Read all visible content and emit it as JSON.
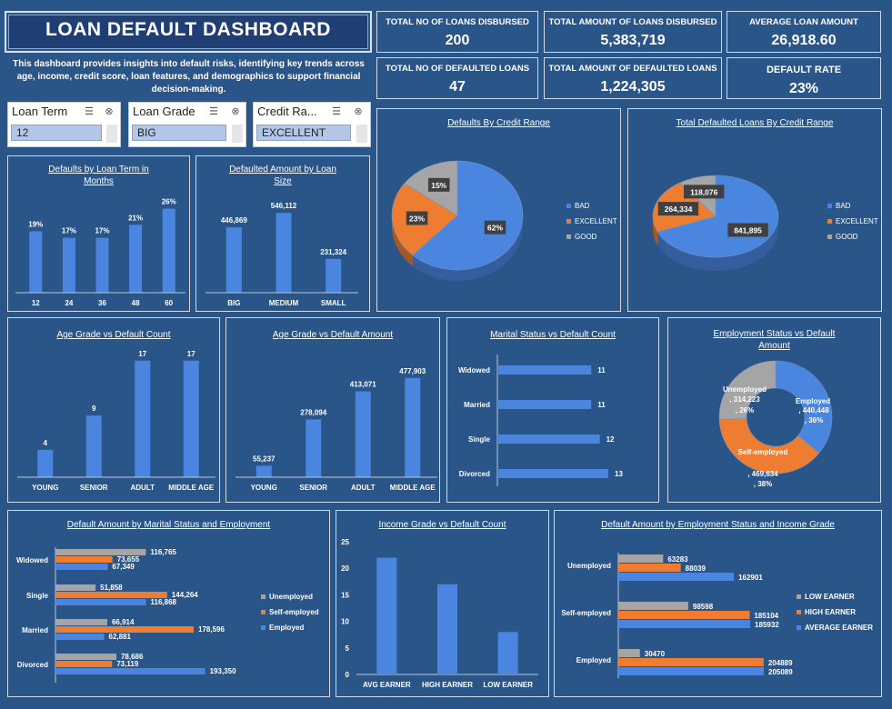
{
  "header": {
    "title": "LOAN DEFAULT DASHBOARD",
    "description": "This dashboard provides insights into default risks, identifying key trends across age, income, credit score, loan features, and demographics to support financial decision-making."
  },
  "kpis": [
    {
      "label": "TOTAL NO OF LOANS DISBURSED",
      "value": "200"
    },
    {
      "label": "TOTAL AMOUNT OF LOANS DISBURSED",
      "value": "5,383,719"
    },
    {
      "label": "AVERAGE LOAN AMOUNT",
      "value": "26,918.60"
    },
    {
      "label": "TOTAL NO OF DEFAULTED LOANS",
      "value": "47"
    },
    {
      "label": "TOTAL AMOUNT OF DEFAULTED LOANS",
      "value": "1,224,305"
    },
    {
      "label": "DEFAULT RATE",
      "value": "23%"
    }
  ],
  "slicers": [
    {
      "title": "Loan Term",
      "selected": "12"
    },
    {
      "title": "Loan Grade",
      "selected": "BIG"
    },
    {
      "title": "Credit Ra...",
      "selected": "EXCELLENT"
    }
  ],
  "colors": {
    "blue": "#4a86e0",
    "orange": "#ee7d31",
    "gray": "#a5a5a5",
    "bg": "#2a5589"
  },
  "chart_data": [
    {
      "id": "loan_term",
      "type": "bar",
      "title": "Defaults by Loan Term in Months",
      "categories": [
        "12",
        "24",
        "36",
        "48",
        "60"
      ],
      "values": [
        19,
        17,
        17,
        21,
        26
      ],
      "value_labels": [
        "19%",
        "17%",
        "17%",
        "21%",
        "26%"
      ]
    },
    {
      "id": "loan_size",
      "type": "bar",
      "title": "Defaulted Amount by Loan Size",
      "categories": [
        "BIG",
        "MEDIUM",
        "SMALL"
      ],
      "values": [
        446869,
        546112,
        231324
      ],
      "value_labels": [
        "446,869",
        "546,112",
        "231,324"
      ]
    },
    {
      "id": "credit_pie",
      "type": "pie",
      "title": "Defaults By Credit Range",
      "categories": [
        "BAD",
        "EXCELLENT",
        "GOOD"
      ],
      "values": [
        62,
        23,
        15
      ],
      "value_labels": [
        "62%",
        "23%",
        "15%"
      ]
    },
    {
      "id": "credit_amount_pie",
      "type": "pie",
      "title": "Total Defaulted Loans By Credit Range",
      "categories": [
        "BAD",
        "EXCELLENT",
        "GOOD"
      ],
      "values": [
        841895,
        264334,
        118076
      ],
      "value_labels": [
        "841,895",
        "264,334",
        "118,076"
      ]
    },
    {
      "id": "age_count",
      "type": "bar",
      "title": "Age Grade vs Default Count",
      "categories": [
        "YOUNG",
        "SENIOR",
        "ADULT",
        "MIDDLE AGE"
      ],
      "values": [
        4,
        9,
        17,
        17
      ],
      "value_labels": [
        "4",
        "9",
        "17",
        "17"
      ]
    },
    {
      "id": "age_amount",
      "type": "bar",
      "title": "Age Grade vs Default Amount",
      "categories": [
        "YOUNG",
        "SENIOR",
        "ADULT",
        "MIDDLE AGE"
      ],
      "values": [
        55237,
        278094,
        413071,
        477903
      ],
      "value_labels": [
        "55,237",
        "278,094",
        "413,071",
        "477,903"
      ]
    },
    {
      "id": "marital_count",
      "type": "bar",
      "title": "Marital Status vs Default Count",
      "categories": [
        "Widowed",
        "Married",
        "Single",
        "Divorced"
      ],
      "values": [
        11,
        11,
        12,
        13
      ],
      "value_labels": [
        "11",
        "11",
        "12",
        "13"
      ]
    },
    {
      "id": "employment_donut",
      "type": "pie",
      "title": "Employment Status vs Default Amount",
      "categories": [
        "Employed",
        "Self-employed",
        "Unemployed"
      ],
      "values": [
        440448,
        469634,
        314223
      ],
      "percents": [
        "36%",
        "38%",
        "26%"
      ]
    },
    {
      "id": "marital_employment",
      "type": "bar",
      "title": "Default Amount by Marital Status and Employment",
      "categories": [
        "Widowed",
        "Single",
        "Married",
        "Divorced"
      ],
      "series": [
        {
          "name": "Unemployed",
          "values": [
            116765,
            51858,
            66914,
            78686
          ],
          "value_labels": [
            "116,765",
            "51,858",
            "66,914",
            "78,686"
          ]
        },
        {
          "name": "Self-employed",
          "values": [
            73655,
            144264,
            178596,
            73119
          ],
          "value_labels": [
            "73,655",
            "144,264",
            "178,596",
            "73,119"
          ]
        },
        {
          "name": "Employed",
          "values": [
            67349,
            116868,
            62881,
            193350
          ],
          "value_labels": [
            "67,349",
            "116,868",
            "62,881",
            "193,350"
          ]
        }
      ]
    },
    {
      "id": "income_count",
      "type": "bar",
      "title": "Income Grade vs Default Count",
      "categories": [
        "AVG EARNER",
        "HIGH EARNER",
        "LOW EARNER"
      ],
      "values": [
        22,
        17,
        8
      ],
      "y_ticks": [
        "0",
        "5",
        "10",
        "15",
        "20",
        "25"
      ],
      "ylim": [
        0,
        25
      ]
    },
    {
      "id": "employment_income",
      "type": "bar",
      "title": "Default Amount by Employment Status and Income Grade",
      "categories": [
        "Unemployed",
        "Self-employed",
        "Employed"
      ],
      "series": [
        {
          "name": "LOW EARNER",
          "values": [
            63283,
            98598,
            30470
          ],
          "value_labels": [
            "63283",
            "98598",
            "30470"
          ]
        },
        {
          "name": "HIGH EARNER",
          "values": [
            88039,
            185104,
            204889
          ],
          "value_labels": [
            "88039",
            "185104",
            "204889"
          ]
        },
        {
          "name": "AVERAGE EARNER",
          "values": [
            162901,
            185932,
            205089
          ],
          "value_labels": [
            "162901",
            "185932",
            "205089"
          ]
        }
      ]
    }
  ]
}
